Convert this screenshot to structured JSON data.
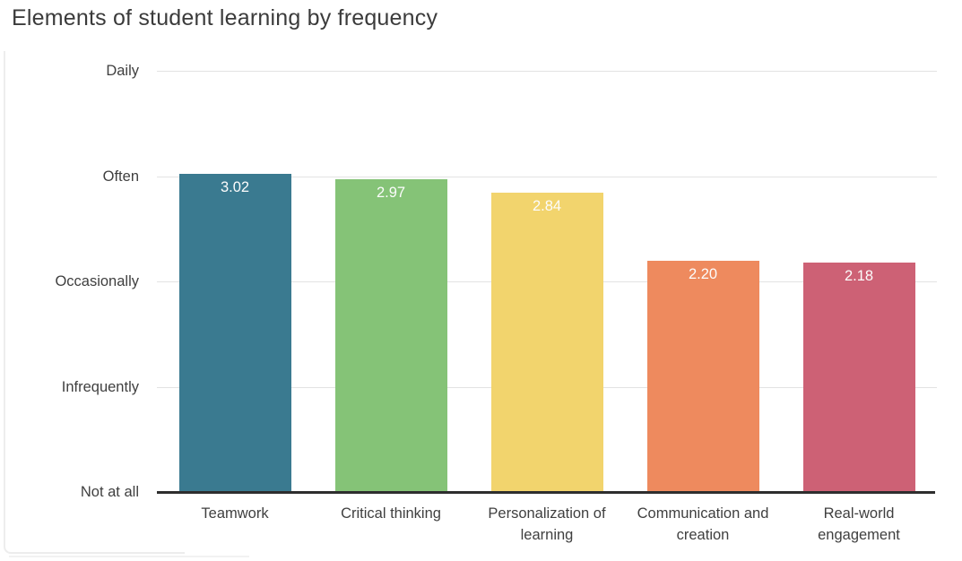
{
  "title": "Elements of student learning by frequency",
  "palette": {
    "background": "#ffffff",
    "gridline": "#e3e3e3",
    "axis_line": "#2e2e2e",
    "title_text": "#3b3b3b",
    "tick_text": "#3f3f3f",
    "bar_value_text": "#fcfcfc"
  },
  "chart_data": {
    "type": "bar",
    "title": "Elements of student learning by frequency",
    "categories": [
      "Teamwork",
      "Critical thinking",
      "Personalization of learning",
      "Communication and creation",
      "Real-world engagement"
    ],
    "values": [
      3.02,
      2.97,
      2.84,
      2.2,
      2.18
    ],
    "value_labels": [
      "3.02",
      "2.97",
      "2.84",
      "2.20",
      "2.18"
    ],
    "bar_colors": [
      "#3a7a90",
      "#85c377",
      "#f2d46d",
      "#ee8a5e",
      "#cd6175"
    ],
    "xlabel": "",
    "ylabel": "",
    "y_ticks_bottom_to_top": [
      "Not at all",
      "Infrequently",
      "Occasionally",
      "Often",
      "Daily"
    ],
    "ylim": [
      0,
      4
    ],
    "grid": "horizontal-light",
    "legend": "none",
    "value_label_position": "inside-top",
    "data_labels_on": true
  }
}
